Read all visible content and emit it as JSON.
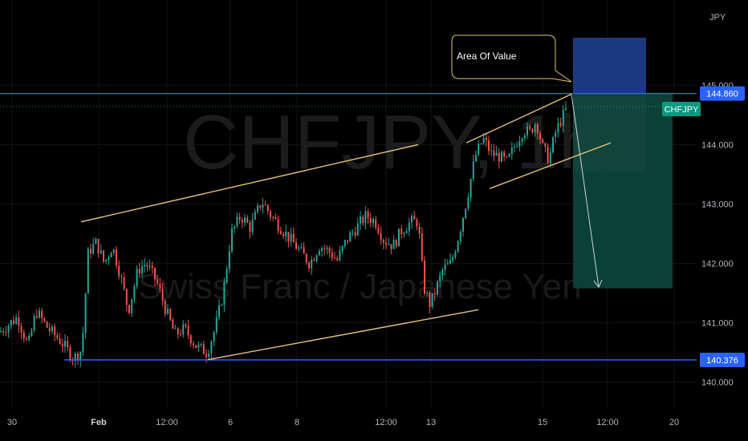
{
  "watermark": {
    "symbol": "CHFJPY, 1h",
    "description": "Swiss Franc / Japanese Yen"
  },
  "currency_label": "JPY",
  "annotation": {
    "label": "Area Of Value"
  },
  "price_badges": [
    {
      "value": "144.860",
      "color": "#2962ff"
    },
    {
      "value": "CHFJPY",
      "color": "#089981"
    },
    {
      "value": "140.376",
      "color": "#2962ff"
    }
  ],
  "colors": {
    "up": "#26a69a",
    "down": "#ef5350",
    "hline": "#2962ff",
    "trend": "#e6c27a",
    "target_zone": "#0d4b3f",
    "stop_zone": "#1e3a8a"
  },
  "chart_data": {
    "type": "candlestick",
    "symbol": "CHFJPY",
    "timeframe": "1h",
    "y_ticks": [
      140.0,
      141.0,
      142.0,
      143.0,
      144.0,
      145.0
    ],
    "ylim": [
      139.55,
      146.3
    ],
    "x_ticks": [
      "30",
      "Feb",
      "12:00",
      "6",
      "8",
      "12:00",
      "13",
      "15",
      "12:00",
      "20"
    ],
    "horizontal_levels": [
      144.86,
      140.376
    ],
    "last_price": 144.64,
    "trendlines": [
      {
        "from": [
          101,
          142.7
        ],
        "to": [
          521,
          144.0
        ]
      },
      {
        "from": [
          259,
          140.38
        ],
        "to": [
          596,
          141.22
        ]
      },
      {
        "from": [
          581,
          144.03
        ],
        "to": [
          712,
          144.85
        ]
      },
      {
        "from": [
          610,
          143.26
        ],
        "to": [
          761,
          144.03
        ]
      }
    ],
    "close_path": [
      [
        0,
        140.85
      ],
      [
        22,
        141.1
      ],
      [
        35,
        140.6
      ],
      [
        45,
        141.2
      ],
      [
        60,
        140.9
      ],
      [
        75,
        140.7
      ],
      [
        92,
        140.4
      ],
      [
        102,
        140.55
      ],
      [
        110,
        142.2
      ],
      [
        120,
        142.35
      ],
      [
        130,
        142.0
      ],
      [
        140,
        142.3
      ],
      [
        150,
        141.8
      ],
      [
        160,
        141.2
      ],
      [
        172,
        141.9
      ],
      [
        182,
        142.0
      ],
      [
        195,
        141.7
      ],
      [
        207,
        141.2
      ],
      [
        218,
        140.8
      ],
      [
        230,
        140.9
      ],
      [
        245,
        140.6
      ],
      [
        258,
        140.5
      ],
      [
        268,
        140.9
      ],
      [
        278,
        141.5
      ],
      [
        288,
        142.5
      ],
      [
        300,
        142.8
      ],
      [
        312,
        142.6
      ],
      [
        326,
        143.05
      ],
      [
        338,
        142.8
      ],
      [
        350,
        142.6
      ],
      [
        362,
        142.4
      ],
      [
        374,
        142.2
      ],
      [
        386,
        142.0
      ],
      [
        398,
        142.3
      ],
      [
        410,
        142.2
      ],
      [
        420,
        142.05
      ],
      [
        432,
        142.4
      ],
      [
        444,
        142.6
      ],
      [
        456,
        142.8
      ],
      [
        468,
        142.7
      ],
      [
        478,
        142.4
      ],
      [
        490,
        142.3
      ],
      [
        500,
        142.55
      ],
      [
        512,
        142.7
      ],
      [
        521,
        142.7
      ],
      [
        528,
        141.6
      ],
      [
        536,
        141.3
      ],
      [
        544,
        141.6
      ],
      [
        552,
        141.9
      ],
      [
        562,
        142.0
      ],
      [
        572,
        142.5
      ],
      [
        582,
        143.1
      ],
      [
        592,
        143.8
      ],
      [
        602,
        144.1
      ],
      [
        612,
        143.85
      ],
      [
        622,
        143.8
      ],
      [
        632,
        143.7
      ],
      [
        642,
        144.0
      ],
      [
        652,
        144.25
      ],
      [
        660,
        144.2
      ],
      [
        668,
        144.4
      ],
      [
        676,
        143.95
      ],
      [
        684,
        143.75
      ],
      [
        692,
        144.2
      ],
      [
        700,
        144.45
      ],
      [
        706,
        144.6
      ]
    ],
    "target_projection": {
      "from": [
        712,
        144.85
      ],
      "to": [
        746,
        141.6
      ]
    }
  }
}
